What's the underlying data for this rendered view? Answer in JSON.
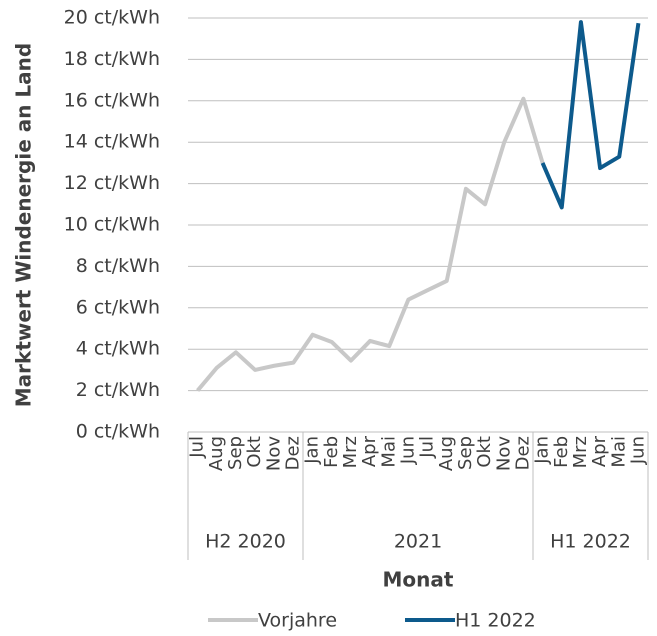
{
  "chart_data": {
    "type": "line",
    "y_label": "Marktwert Windenergie an Land",
    "x_label": "Monat",
    "categories": [
      "Jul",
      "Aug",
      "Sep",
      "Okt",
      "Nov",
      "Dez",
      "Jan",
      "Feb",
      "Mrz",
      "Apr",
      "Mai",
      "Jun",
      "Jul",
      "Aug",
      "Sep",
      "Okt",
      "Nov",
      "Dez",
      "Jan",
      "Feb",
      "Mrz",
      "Apr",
      "Mai",
      "Jun"
    ],
    "x_groups": [
      {
        "label": "H2 2020",
        "size": 6
      },
      {
        "label": "2021",
        "size": 12
      },
      {
        "label": "H1 2022",
        "size": 6
      }
    ],
    "series": [
      {
        "name": "Vorjahre",
        "color": "#c8c8c8",
        "values": [
          2.0,
          3.1,
          3.85,
          3.0,
          3.2,
          3.35,
          4.7,
          4.35,
          3.45,
          4.4,
          4.15,
          6.4,
          6.85,
          7.3,
          11.75,
          11.0,
          14.0,
          16.1,
          13.0,
          null,
          null,
          null,
          null,
          null
        ]
      },
      {
        "name": "H1 2022",
        "color": "#0d5a8c",
        "values": [
          null,
          null,
          null,
          null,
          null,
          null,
          null,
          null,
          null,
          null,
          null,
          null,
          null,
          null,
          null,
          null,
          null,
          null,
          13.0,
          10.85,
          19.8,
          12.75,
          13.3,
          19.75
        ]
      }
    ],
    "ylim": [
      0,
      20
    ],
    "yticks": [
      {
        "value": 0,
        "label": "0 ct/kWh"
      },
      {
        "value": 2,
        "label": "2 ct/kWh"
      },
      {
        "value": 4,
        "label": "4 ct/kWh"
      },
      {
        "value": 6,
        "label": "6 ct/kWh"
      },
      {
        "value": 8,
        "label": "8 ct/kWh"
      },
      {
        "value": 10,
        "label": "10 ct/kWh"
      },
      {
        "value": 12,
        "label": "12 ct/kWh"
      },
      {
        "value": 14,
        "label": "14 ct/kWh"
      },
      {
        "value": 16,
        "label": "16 ct/kWh"
      },
      {
        "value": 18,
        "label": "18 ct/kWh"
      },
      {
        "value": 20,
        "label": "20 ct/kWh"
      }
    ],
    "grid": true
  }
}
